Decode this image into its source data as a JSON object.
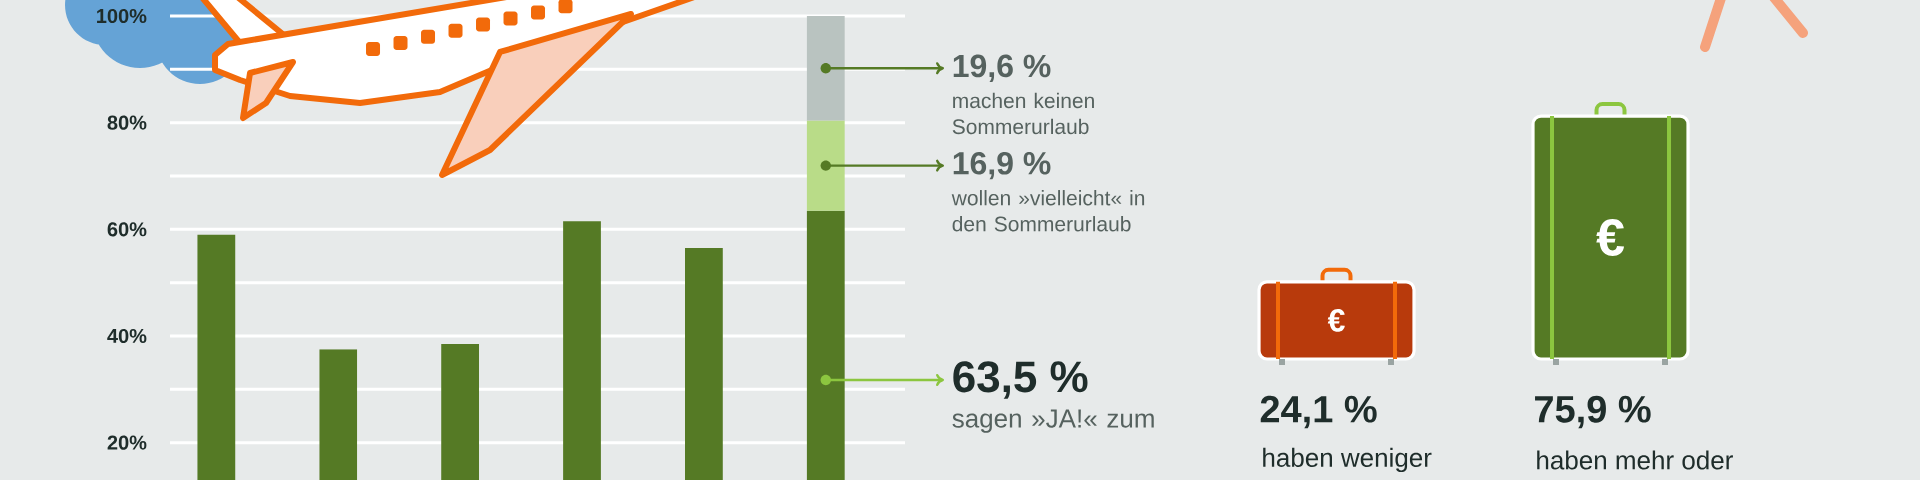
{
  "chart_data": [
    {
      "type": "bar",
      "stacked": true,
      "categories": [
        null,
        null,
        null,
        null,
        null,
        null
      ],
      "series": [
        {
          "color": "#557a25",
          "values": [
            59,
            37.5,
            38.5,
            61.5,
            56.5,
            63.5
          ],
          "value_labels": [
            null,
            null,
            null,
            null,
            null,
            "63,5 %"
          ]
        },
        {
          "color": "#b9dc88",
          "values": [
            null,
            null,
            null,
            null,
            null,
            16.9
          ],
          "value_labels": [
            null,
            null,
            null,
            null,
            null,
            "16,9 %"
          ]
        },
        {
          "color": "#b9c3c0",
          "values": [
            null,
            null,
            null,
            null,
            null,
            19.6
          ],
          "value_labels": [
            null,
            null,
            null,
            null,
            null,
            "19,6 %"
          ]
        }
      ],
      "ylim": [
        13,
        103
      ],
      "yticks": [
        {
          "value": 20,
          "label": "20%"
        },
        {
          "value": 30,
          "label": null
        },
        {
          "value": 40,
          "label": "40%"
        },
        {
          "value": 50,
          "label": null
        },
        {
          "value": 60,
          "label": "60%"
        },
        {
          "value": 70,
          "label": null
        },
        {
          "value": 80,
          "label": "80%"
        },
        {
          "value": 90,
          "label": null
        },
        {
          "value": 100,
          "label": "100%"
        }
      ],
      "grid": "y",
      "tick_labels": "y",
      "annotations": [
        "sagen »JA!« zum",
        "wollen »vielleicht« in den Sommerurlaub",
        "machen keinen Sommerurlaub"
      ]
    },
    {
      "type": "other",
      "categories": [
        null,
        null
      ],
      "values": [
        24.1,
        75.9
      ],
      "value_labels": [
        "24,1 %",
        "75,9 %"
      ],
      "colors": [
        "#b83a0c",
        "#557a25"
      ],
      "annotations": [
        "€",
        "haben weniger",
        "€",
        "haben mehr oder"
      ]
    }
  ]
}
